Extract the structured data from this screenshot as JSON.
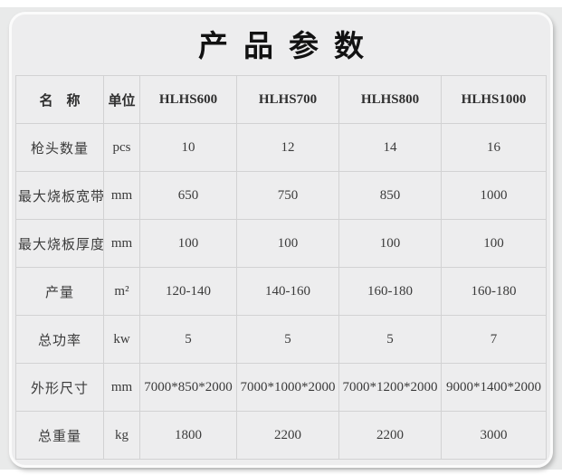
{
  "title": "产品参数",
  "table": {
    "headers": [
      "名　称",
      "单位",
      "HLHS600",
      "HLHS700",
      "HLHS800",
      "HLHS1000"
    ],
    "rows": [
      [
        "枪头数量",
        "pcs",
        "10",
        "12",
        "14",
        "16"
      ],
      [
        "最大烧板宽带",
        "mm",
        "650",
        "750",
        "850",
        "1000"
      ],
      [
        "最大烧板厚度",
        "mm",
        "100",
        "100",
        "100",
        "100"
      ],
      [
        "产量",
        "m²",
        "120-140",
        "140-160",
        "160-180",
        "160-180"
      ],
      [
        "总功率",
        "kw",
        "5",
        "5",
        "5",
        "7"
      ],
      [
        "外形尺寸",
        "mm",
        "7000*850*2000",
        "7000*1000*2000",
        "7000*1200*2000",
        "9000*1400*2000"
      ],
      [
        "总重量",
        "kg",
        "1800",
        "2200",
        "2200",
        "3000"
      ]
    ]
  }
}
